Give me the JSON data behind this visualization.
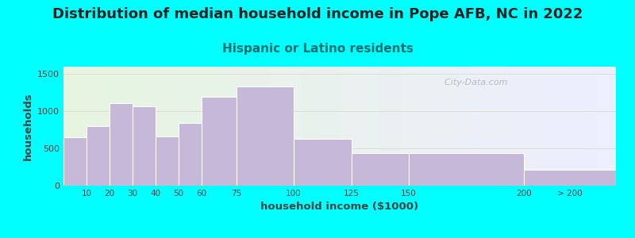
{
  "title": "Distribution of median household income in Pope AFB, NC in 2022",
  "subtitle": "Hispanic or Latino residents",
  "xlabel": "household income ($1000)",
  "ylabel": "households",
  "background_color": "#00FFFF",
  "plot_bg_gradient_left": "#e6f5e0",
  "plot_bg_gradient_right": "#eeeeff",
  "bar_color": "#c5b8d8",
  "bar_edge_color": "#ffffff",
  "categories": [
    "10",
    "20",
    "30",
    "40",
    "50",
    "60",
    "75",
    "100",
    "125",
    "150",
    "200",
    "> 200"
  ],
  "bin_edges": [
    0,
    10,
    20,
    30,
    40,
    50,
    60,
    75,
    100,
    125,
    150,
    200,
    240
  ],
  "values": [
    650,
    800,
    1110,
    1070,
    660,
    840,
    1200,
    1330,
    625,
    440,
    440,
    215
  ],
  "tick_positions": [
    10,
    20,
    30,
    40,
    50,
    60,
    75,
    100,
    125,
    150,
    200
  ],
  "yticks": [
    0,
    500,
    1000,
    1500
  ],
  "ymax": 1600,
  "xmax": 240,
  "watermark": "  City-Data.com",
  "title_fontsize": 13,
  "subtitle_fontsize": 11,
  "subtitle_color": "#007070",
  "grid_color": "#ddddcc",
  "tick_color": "#444444",
  "label_color": "#444444"
}
